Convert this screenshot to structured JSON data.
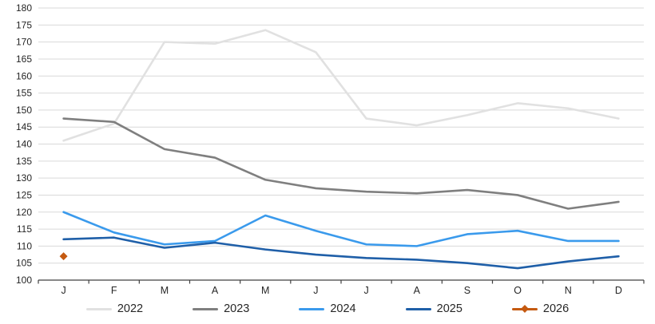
{
  "chart_data": {
    "type": "line",
    "title": "",
    "xlabel": "",
    "ylabel": "",
    "categories": [
      "J",
      "F",
      "M",
      "A",
      "M",
      "J",
      "J",
      "A",
      "S",
      "O",
      "N",
      "D"
    ],
    "series": [
      {
        "name": "2022",
        "color": "#E1E1E1",
        "marker": "none",
        "values": [
          141,
          146,
          170,
          169.5,
          173.5,
          167,
          147.5,
          145.5,
          148.5,
          152,
          150.5,
          147.5
        ]
      },
      {
        "name": "2023",
        "color": "#7F7F7F",
        "marker": "none",
        "values": [
          147.5,
          146.5,
          138.5,
          136,
          129.5,
          127,
          126,
          125.5,
          126.5,
          125,
          121,
          123
        ]
      },
      {
        "name": "2024",
        "color": "#3A9AEC",
        "marker": "none",
        "values": [
          120,
          114,
          110.5,
          111.5,
          119,
          114.5,
          110.5,
          110,
          113.5,
          114.5,
          111.5,
          111.5
        ]
      },
      {
        "name": "2025",
        "color": "#1F5FA8",
        "marker": "none",
        "values": [
          112,
          112.5,
          109.5,
          111,
          109,
          107.5,
          106.5,
          106,
          105,
          103.5,
          105.5,
          107
        ]
      },
      {
        "name": "2026",
        "color": "#C55A11",
        "marker": "diamond",
        "values": [
          107,
          null,
          null,
          null,
          null,
          null,
          null,
          null,
          null,
          null,
          null,
          null
        ]
      }
    ],
    "ylim": [
      100,
      180
    ],
    "ytick_step": 5,
    "y_tick_labels": [
      100,
      105,
      110,
      115,
      120,
      125,
      130,
      135,
      140,
      145,
      150,
      155,
      160,
      165,
      170,
      175,
      180
    ],
    "grid": true,
    "gridline_color": "#D9D9D9",
    "axis_color": "#404040",
    "legend_position": "bottom"
  }
}
